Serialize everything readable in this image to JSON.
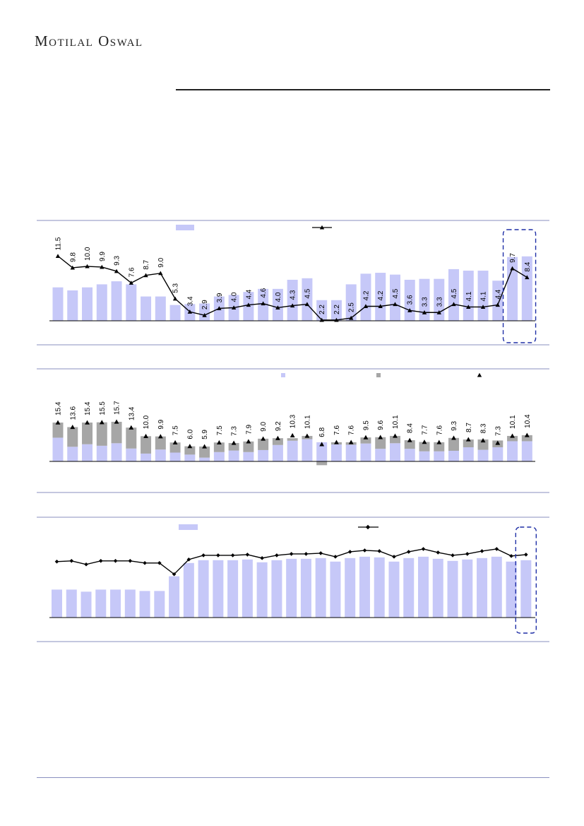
{
  "brand": "Motilal Oswal",
  "colors": {
    "bar": "#c6c8f8",
    "stack_grey": "#a6a6a6",
    "line": "#000000",
    "highlight": "#1f2fa6",
    "rule": "#8a8fbf"
  },
  "chart_data": [
    {
      "type": "bar",
      "title": "",
      "legend": {
        "position": "top",
        "markers": [
          "bar",
          "line-triangle"
        ]
      },
      "series": [
        {
          "type": "bar",
          "values": [
            11.0,
            10.0,
            11.0,
            12.0,
            13.0,
            12.0,
            8.0,
            8.0,
            5.2,
            5.5,
            5.7,
            8.0,
            8.5,
            9.5,
            10.5,
            10.5,
            13.5,
            14.0,
            6.8,
            6.8,
            12.0,
            15.5,
            15.8,
            15.2,
            13.5,
            13.8,
            13.8,
            17.0,
            16.5,
            16.5,
            13.2,
            21.0,
            21.2
          ]
        },
        {
          "type": "line",
          "marker": "triangle",
          "values": [
            11.5,
            9.8,
            10.0,
            9.9,
            9.3,
            7.6,
            8.7,
            9.0,
            5.3,
            3.4,
            2.9,
            3.9,
            4.0,
            4.4,
            4.6,
            4.0,
            4.3,
            4.5,
            2.2,
            2.2,
            2.5,
            4.2,
            4.2,
            4.5,
            3.6,
            3.3,
            3.3,
            4.5,
            4.1,
            4.1,
            4.4,
            9.7,
            8.4
          ]
        }
      ],
      "highlight_last": 2
    },
    {
      "type": "bar",
      "title": "",
      "legend": {
        "position": "top-right",
        "markers": [
          "bar",
          "grey-square",
          "triangle"
        ]
      },
      "series": [
        {
          "type": "bar",
          "stack": "a",
          "values": [
            9.4,
            5.8,
            6.8,
            6.2,
            7.2,
            5.1,
            3.1,
            4.7,
            3.5,
            2.7,
            1.5,
            3.7,
            4.3,
            3.7,
            4.5,
            6.5,
            8.2,
            8.8,
            7.6,
            6.7,
            6.6,
            7.1,
            5.0,
            7.2,
            5.0,
            4.0,
            4.0,
            4.2,
            5.6,
            4.6,
            5.6,
            8.0,
            8.0
          ]
        },
        {
          "type": "bar",
          "stack": "a",
          "values": [
            6.0,
            7.8,
            8.6,
            9.3,
            8.5,
            8.3,
            6.9,
            5.2,
            4.0,
            3.3,
            4.4,
            3.8,
            3.0,
            4.2,
            4.5,
            2.7,
            1.0,
            1.3,
            -1.5,
            0.9,
            1.0,
            2.4,
            4.6,
            2.9,
            3.4,
            3.7,
            3.6,
            5.1,
            3.1,
            4.1,
            2.7,
            2.1,
            2.4
          ]
        },
        {
          "type": "line",
          "marker": "triangle",
          "values": [
            15.4,
            13.6,
            15.4,
            15.5,
            15.7,
            13.4,
            10.0,
            9.9,
            7.5,
            6.0,
            5.9,
            7.5,
            7.3,
            7.9,
            9.0,
            9.2,
            10.3,
            10.1,
            6.8,
            7.6,
            7.6,
            9.5,
            9.6,
            10.1,
            8.4,
            7.7,
            7.6,
            9.3,
            8.7,
            8.3,
            7.3,
            10.1,
            10.4
          ]
        }
      ]
    },
    {
      "type": "bar",
      "title": "",
      "legend": {
        "position": "top",
        "markers": [
          "bar",
          "line-diamond"
        ]
      },
      "series": [
        {
          "type": "bar",
          "values": [
            40,
            40,
            37,
            40,
            40,
            40,
            38,
            38,
            59,
            78,
            82,
            82,
            82,
            83,
            79,
            82,
            84,
            84,
            85,
            80,
            85,
            87,
            86,
            80,
            85,
            87,
            84,
            81,
            83,
            85,
            87,
            80,
            82
          ]
        },
        {
          "type": "line",
          "marker": "diamond",
          "values": [
            80,
            81,
            76,
            81,
            81,
            81,
            78,
            78,
            62,
            83,
            89,
            89,
            89,
            90,
            85,
            89,
            91,
            91,
            92,
            87,
            94,
            96,
            95,
            87,
            94,
            98,
            93,
            89,
            91,
            95,
            98,
            88,
            90
          ]
        }
      ],
      "highlight_last": 1
    }
  ]
}
